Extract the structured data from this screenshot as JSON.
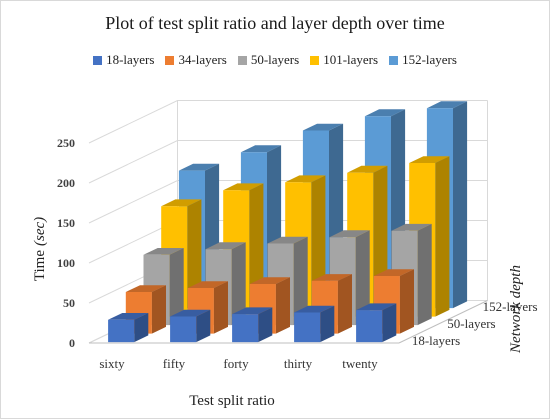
{
  "chart_data": {
    "type": "bar",
    "title": "Plot of test split ratio and layer depth over time",
    "xlabel": "Test split ratio",
    "ylabel": "Time",
    "ylabel_unit": "(sec)",
    "zlabel": "Network depth",
    "categories": [
      "sixty",
      "fifty",
      "forty",
      "thirty",
      "twenty"
    ],
    "depth_tick_labels": [
      "18-layers",
      "50-layers",
      "152-layers"
    ],
    "y_ticks": [
      0,
      50,
      100,
      150,
      200,
      250
    ],
    "ylim": [
      0,
      250
    ],
    "grid": true,
    "legend_position": "top",
    "series": [
      {
        "name": "18-layers",
        "color": "#4472c4",
        "values": [
          28,
          32,
          35,
          37,
          40
        ]
      },
      {
        "name": "34-layers",
        "color": "#ed7d31",
        "values": [
          52,
          57,
          62,
          66,
          72
        ]
      },
      {
        "name": "50-layers",
        "color": "#a5a5a5",
        "values": [
          88,
          95,
          102,
          110,
          118
        ]
      },
      {
        "name": "101-layers",
        "color": "#ffc000",
        "values": [
          138,
          158,
          168,
          180,
          192
        ]
      },
      {
        "name": "152-layers",
        "color": "#5b9bd5",
        "values": [
          172,
          195,
          222,
          240,
          250
        ]
      }
    ]
  }
}
